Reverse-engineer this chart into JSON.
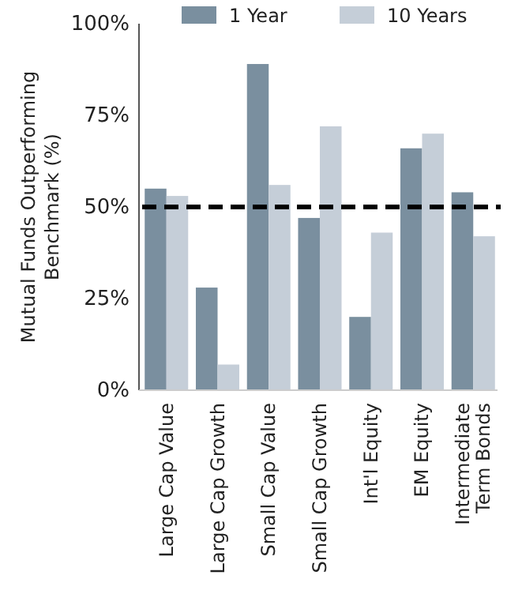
{
  "chart_data": {
    "type": "bar",
    "ylabel": "Mutual Funds Outperforming Benchmark (%)",
    "categories": [
      "Large Cap Value",
      "Large Cap Growth",
      "Small Cap Value",
      "Small Cap Growth",
      "Int'l Equity",
      "EM Equity",
      "Intermediate Term Bonds"
    ],
    "series": [
      {
        "name": "1 Year",
        "color": "#7a8f9f",
        "values": [
          55,
          28,
          89,
          47,
          20,
          66,
          54
        ]
      },
      {
        "name": "10 Years",
        "color": "#c5ced8",
        "values": [
          53,
          7,
          56,
          72,
          43,
          70,
          42
        ]
      }
    ],
    "ylim": [
      0,
      100
    ],
    "yticks": [
      {
        "value": 0,
        "label": "0%"
      },
      {
        "value": 25,
        "label": "25%"
      },
      {
        "value": 50,
        "label": "50%"
      },
      {
        "value": 75,
        "label": "75%"
      },
      {
        "value": 100,
        "label": "100%"
      }
    ],
    "ref_lines": [
      {
        "axis": "y",
        "value": 50,
        "color": "#000000",
        "line_style": "dashed"
      }
    ],
    "legend": "top",
    "grid": false
  }
}
